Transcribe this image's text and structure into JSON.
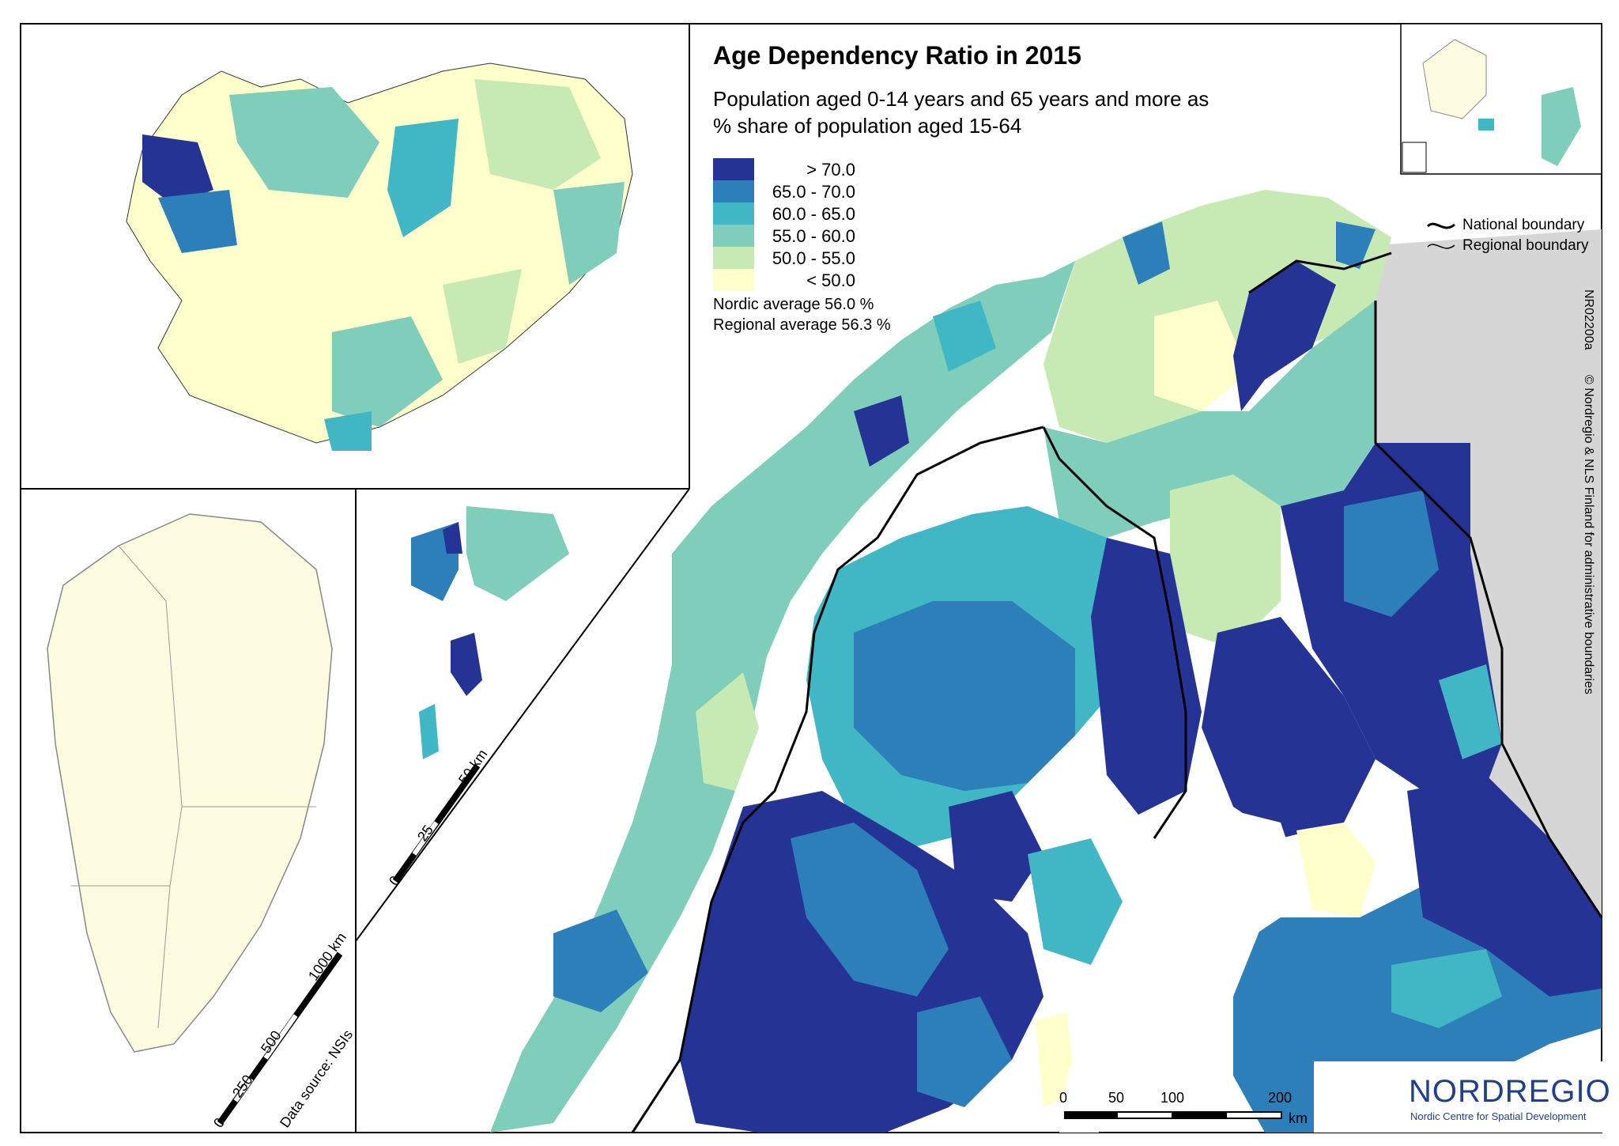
{
  "title": "Age Dependency Ratio in 2015",
  "subtitle": "Population aged 0-14 years and 65 years and more as % share of population aged 15-64",
  "legend": [
    {
      "label": "> 70.0",
      "color": "#253494"
    },
    {
      "label": "65.0 - 70.0",
      "color": "#2c7fb8"
    },
    {
      "label": "60.0 - 65.0",
      "color": "#41b6c4"
    },
    {
      "label": "55.0 - 60.0",
      "color": "#7fcdbb"
    },
    {
      "label": "50.0 - 55.0",
      "color": "#c7e9b4"
    },
    {
      "label": "< 50.0",
      "color": "#ffffcc"
    }
  ],
  "averages": {
    "nordic": "Nordic average 56.0 %",
    "regional": "Regional average 56.3 %"
  },
  "boundaries": {
    "national": "National boundary",
    "regional": "Regional boundary"
  },
  "map_id": "NR02200a",
  "copyright": "© Nordregio & NLS Finland for administrative boundaries",
  "data_source": "Data source: NSIs",
  "scalebars": {
    "greenland": [
      "0",
      "250",
      "500",
      "1000 km"
    ],
    "svalbard": [
      "0",
      "25",
      "50 km"
    ],
    "main": [
      "0",
      "50",
      "100",
      "200",
      "km"
    ]
  },
  "logo": {
    "name": "NORDREGIO",
    "subtitle": "Nordic Centre for Spatial Development"
  },
  "colors": {
    "land_grey": "#d6d6d6",
    "greenland_fill": "#fdfbe0",
    "boundary": "#000000",
    "logo_blue": "#1f3f8f"
  }
}
